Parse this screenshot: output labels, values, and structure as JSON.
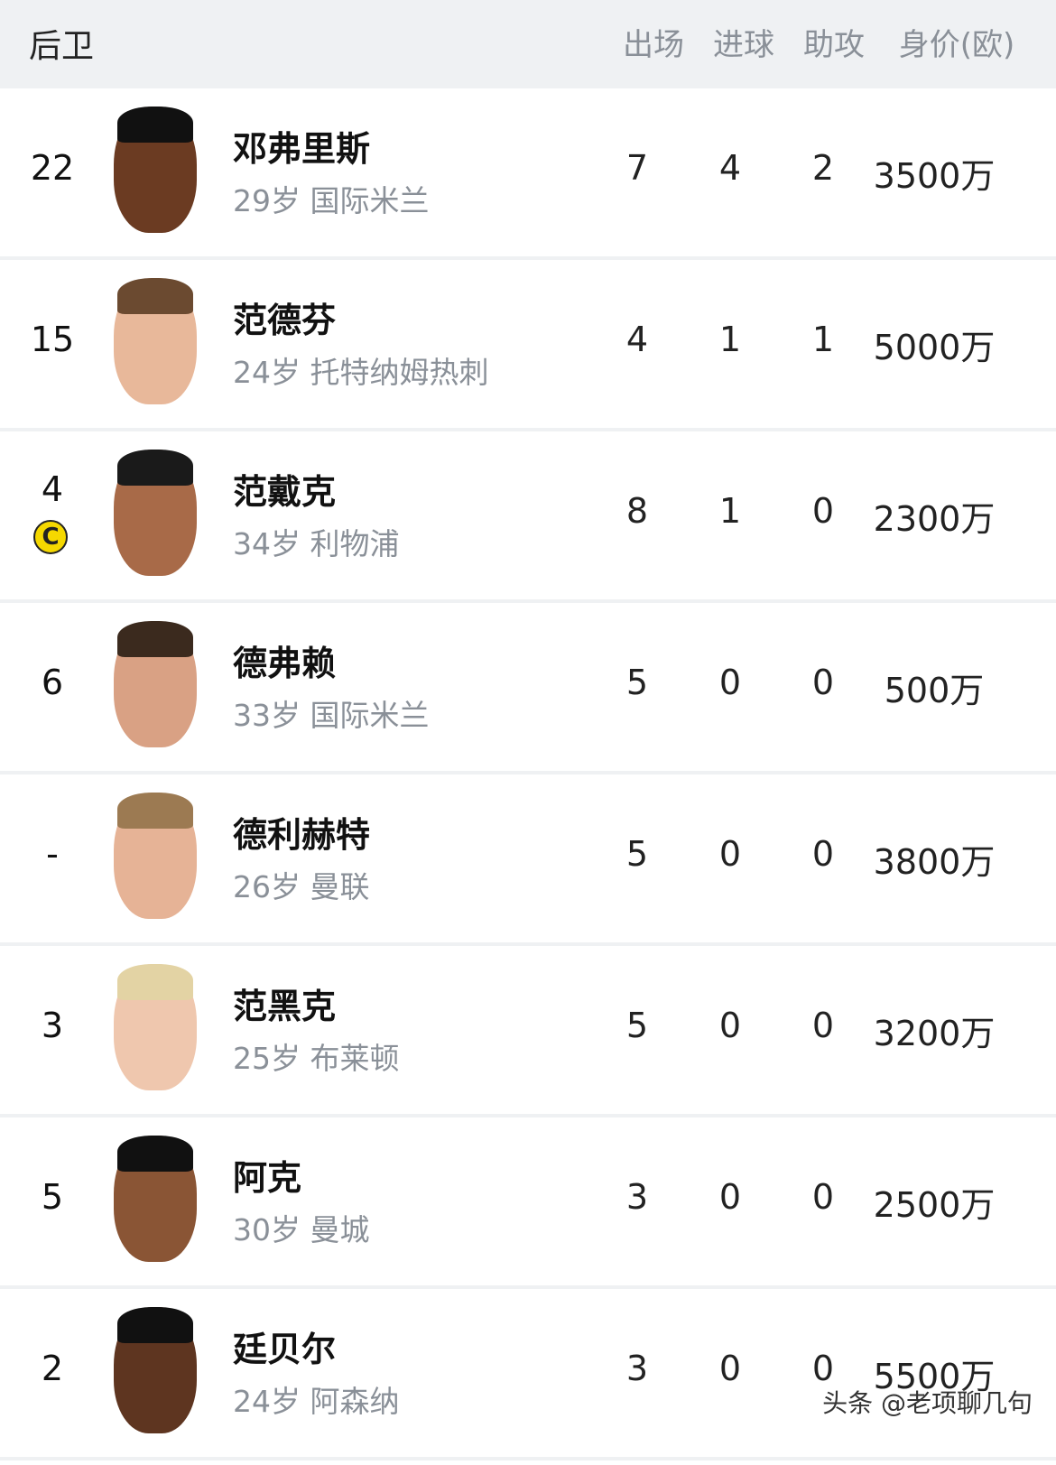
{
  "header": {
    "title": "后卫",
    "columns": [
      "出场",
      "进球",
      "助攻",
      "身价(欧)"
    ]
  },
  "players": [
    {
      "number": "22",
      "captain": false,
      "name": "邓弗里斯",
      "info": "29岁 国际米兰",
      "apps": "7",
      "goals": "4",
      "assists": "2",
      "value": "3500万",
      "skin": "#6b3b22",
      "hair": "#111"
    },
    {
      "number": "15",
      "captain": false,
      "name": "范德芬",
      "info": "24岁 托特纳姆热刺",
      "apps": "4",
      "goals": "1",
      "assists": "1",
      "value": "5000万",
      "skin": "#e8b89a",
      "hair": "#6b4a30"
    },
    {
      "number": "4",
      "captain": true,
      "captain_mark": "C",
      "name": "范戴克",
      "info": "34岁 利物浦",
      "apps": "8",
      "goals": "1",
      "assists": "0",
      "value": "2300万",
      "skin": "#a86a48",
      "hair": "#1a1a1a"
    },
    {
      "number": "6",
      "captain": false,
      "name": "德弗赖",
      "info": "33岁 国际米兰",
      "apps": "5",
      "goals": "0",
      "assists": "0",
      "value": "500万",
      "skin": "#d9a184",
      "hair": "#3b2a1e"
    },
    {
      "number": "-",
      "captain": false,
      "name": "德利赫特",
      "info": "26岁 曼联",
      "apps": "5",
      "goals": "0",
      "assists": "0",
      "value": "3800万",
      "skin": "#e6b396",
      "hair": "#9c7a52"
    },
    {
      "number": "3",
      "captain": false,
      "name": "范黑克",
      "info": "25岁 布莱顿",
      "apps": "5",
      "goals": "0",
      "assists": "0",
      "value": "3200万",
      "skin": "#efc7ae",
      "hair": "#e3d3a4"
    },
    {
      "number": "5",
      "captain": false,
      "name": "阿克",
      "info": "30岁 曼城",
      "apps": "3",
      "goals": "0",
      "assists": "0",
      "value": "2500万",
      "skin": "#8a5535",
      "hair": "#111"
    },
    {
      "number": "2",
      "captain": false,
      "name": "廷贝尔",
      "info": "24岁 阿森纳",
      "apps": "3",
      "goals": "0",
      "assists": "0",
      "value": "5500万",
      "skin": "#5e3520",
      "hair": "#111"
    }
  ],
  "watermark": "头条 @老项聊几句"
}
